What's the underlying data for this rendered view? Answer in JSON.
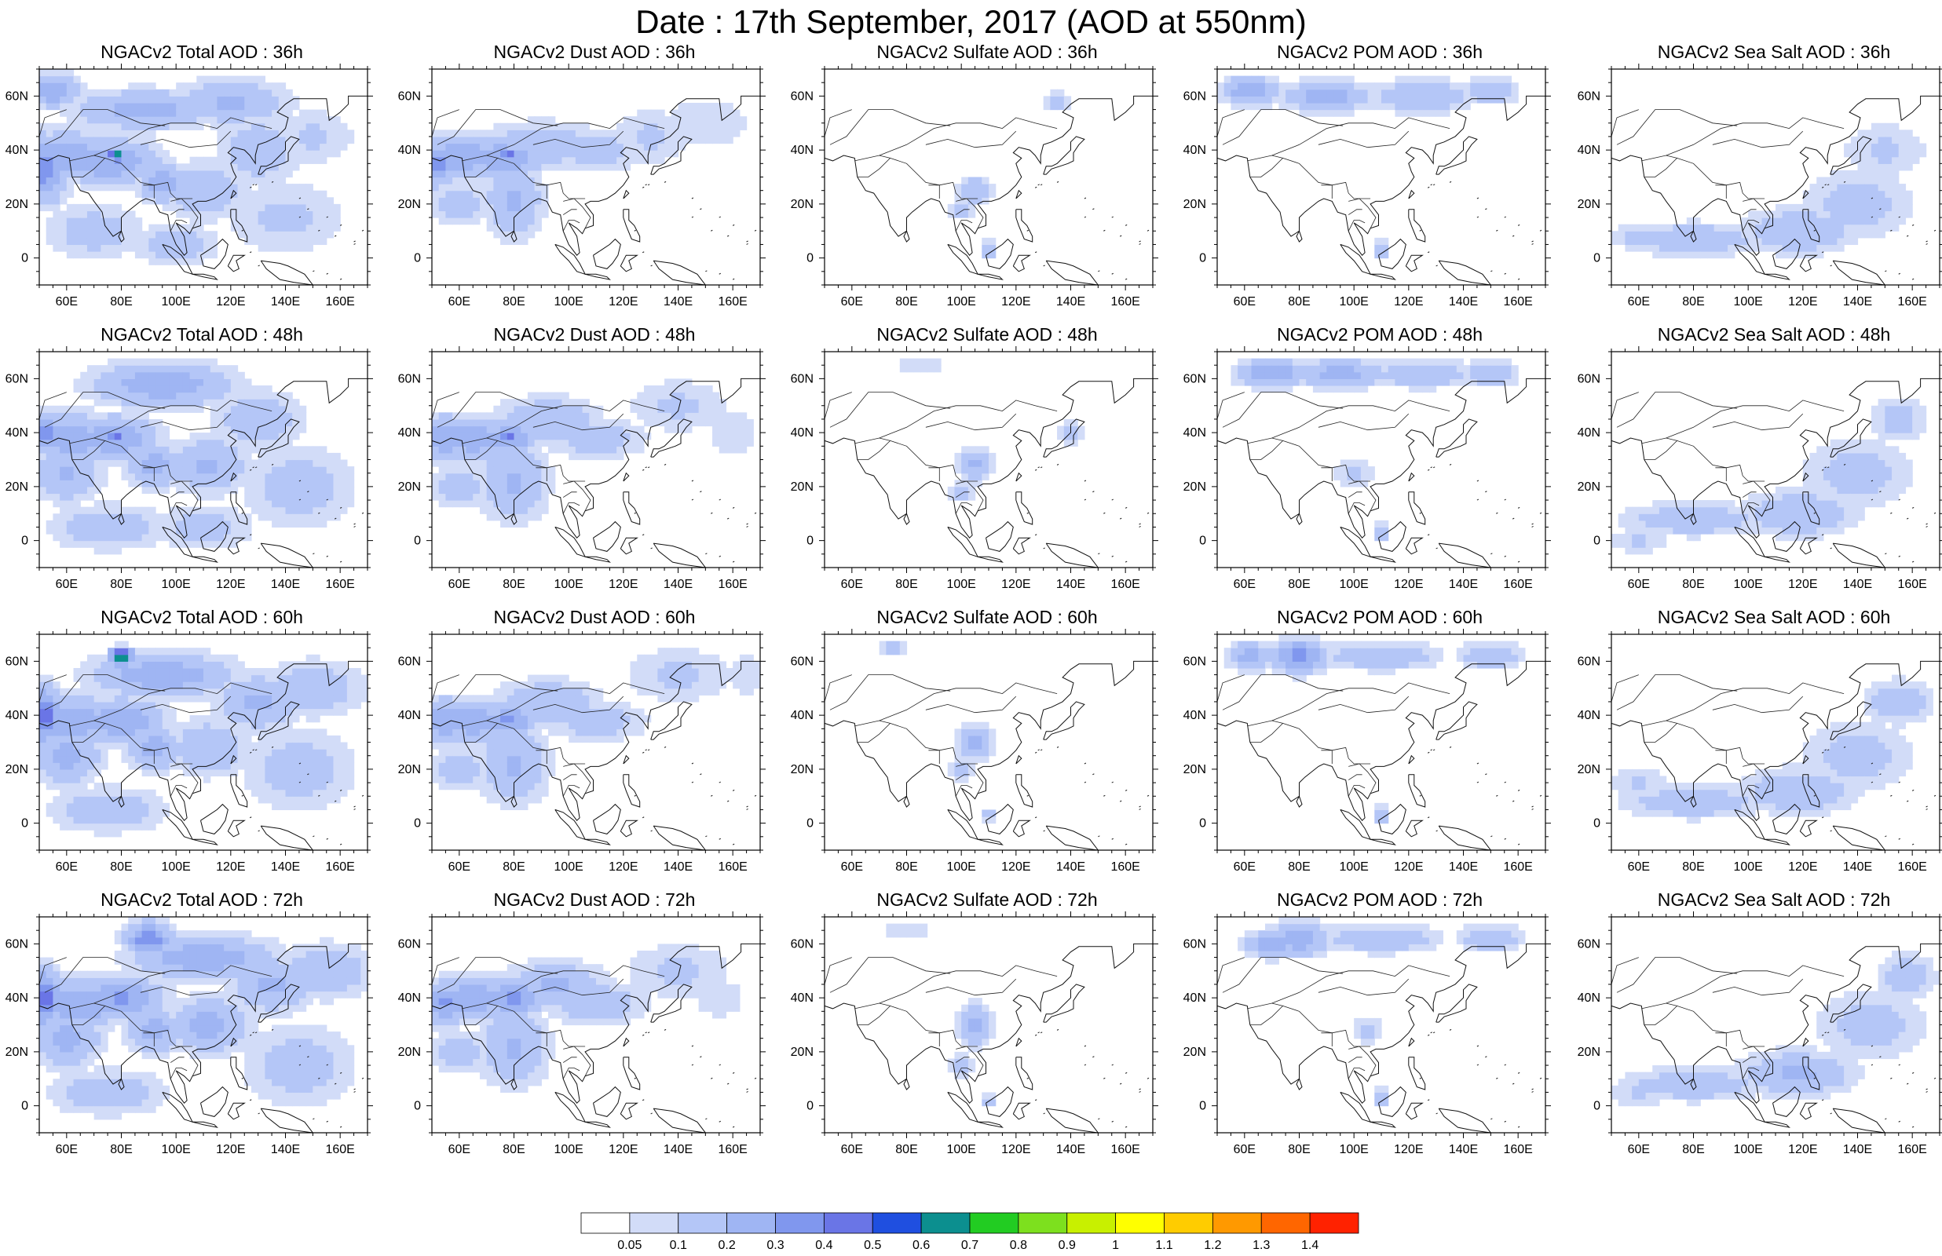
{
  "title": "Date : 17th September, 2017 (AOD at 550nm)",
  "panel_titles": [
    [
      "NGACv2 Total AOD : 36h",
      "NGACv2 Dust AOD : 36h",
      "NGACv2 Sulfate AOD : 36h",
      "NGACv2 POM AOD : 36h",
      "NGACv2 Sea Salt AOD : 36h"
    ],
    [
      "NGACv2 Total AOD : 48h",
      "NGACv2 Dust AOD : 48h",
      "NGACv2 Sulfate AOD : 48h",
      "NGACv2 POM AOD : 48h",
      "NGACv2 Sea Salt AOD : 48h"
    ],
    [
      "NGACv2 Total AOD : 60h",
      "NGACv2 Dust AOD : 60h",
      "NGACv2 Sulfate AOD : 60h",
      "NGACv2 POM AOD : 60h",
      "NGACv2 Sea Salt AOD : 60h"
    ],
    [
      "NGACv2 Total AOD : 72h",
      "NGACv2 Dust AOD : 72h",
      "NGACv2 Sulfate AOD : 72h",
      "NGACv2 POM AOD : 72h",
      "NGACv2 Sea Salt  AOD : 72h"
    ]
  ],
  "x_ticks": [
    {
      "value": 60,
      "label": "60E"
    },
    {
      "value": 80,
      "label": "80E"
    },
    {
      "value": 100,
      "label": "100E"
    },
    {
      "value": 120,
      "label": "120E"
    },
    {
      "value": 140,
      "label": "140E"
    },
    {
      "value": 160,
      "label": "160E"
    }
  ],
  "y_ticks": [
    {
      "value": 0,
      "label": "0"
    },
    {
      "value": 20,
      "label": "20N"
    },
    {
      "value": 40,
      "label": "40N"
    },
    {
      "value": 60,
      "label": "60N"
    }
  ],
  "map_extent": {
    "lon": [
      50,
      170
    ],
    "lat": [
      -10,
      70
    ]
  },
  "colorbar": {
    "labels": [
      "0.05",
      "0.1",
      "0.2",
      "0.3",
      "0.4",
      "0.5",
      "0.6",
      "0.7",
      "0.8",
      "0.9",
      "1",
      "1.1",
      "1.2",
      "1.3",
      "1.4"
    ],
    "colors": [
      "#ffffff",
      "#d2dcf8",
      "#b4c6f7",
      "#9fb5f3",
      "#8097ee",
      "#6a75e6",
      "#1f4fe0",
      "#0c8f8f",
      "#22cc22",
      "#7de01e",
      "#c8f000",
      "#ffff00",
      "#ffcc00",
      "#ff9900",
      "#ff6600",
      "#ff2200"
    ]
  },
  "panels": [
    [
      {
        "blobs": [
          [
            52,
            33,
            8,
            12,
            0.35
          ],
          [
            60,
            38,
            14,
            9,
            0.28
          ],
          [
            75,
            36,
            18,
            8,
            0.3
          ],
          [
            78,
            38,
            3,
            2,
            0.75
          ],
          [
            88,
            55,
            25,
            7,
            0.25
          ],
          [
            95,
            28,
            8,
            7,
            0.28
          ],
          [
            110,
            25,
            14,
            10,
            0.2
          ],
          [
            130,
            40,
            14,
            12,
            0.18
          ],
          [
            140,
            15,
            22,
            14,
            0.12
          ],
          [
            70,
            10,
            18,
            10,
            0.15
          ],
          [
            100,
            5,
            15,
            8,
            0.15
          ],
          [
            150,
            45,
            15,
            10,
            0.12
          ],
          [
            55,
            62,
            10,
            6,
            0.28
          ],
          [
            120,
            58,
            20,
            8,
            0.22
          ]
        ]
      },
      {
        "blobs": [
          [
            52,
            35,
            6,
            8,
            0.35
          ],
          [
            62,
            38,
            14,
            8,
            0.28
          ],
          [
            76,
            37,
            14,
            7,
            0.3
          ],
          [
            78,
            38,
            3,
            2,
            0.6
          ],
          [
            90,
            42,
            20,
            8,
            0.2
          ],
          [
            80,
            22,
            10,
            14,
            0.22
          ],
          [
            110,
            40,
            18,
            8,
            0.15
          ],
          [
            130,
            45,
            15,
            10,
            0.12
          ],
          [
            60,
            20,
            12,
            8,
            0.15
          ],
          [
            150,
            50,
            18,
            10,
            0.1
          ]
        ]
      },
      {
        "blobs": [
          [
            105,
            25,
            6,
            5,
            0.2
          ],
          [
            135,
            58,
            5,
            4,
            0.15
          ],
          [
            110,
            3,
            3,
            3,
            0.2
          ],
          [
            100,
            18,
            4,
            4,
            0.15
          ]
        ]
      },
      {
        "blobs": [
          [
            62,
            62,
            10,
            5,
            0.3
          ],
          [
            90,
            60,
            15,
            6,
            0.25
          ],
          [
            125,
            60,
            18,
            6,
            0.2
          ],
          [
            150,
            62,
            10,
            5,
            0.18
          ],
          [
            110,
            3,
            3,
            3,
            0.25
          ]
        ]
      },
      {
        "blobs": [
          [
            80,
            7,
            25,
            6,
            0.18
          ],
          [
            118,
            10,
            20,
            8,
            0.2
          ],
          [
            140,
            20,
            20,
            12,
            0.15
          ],
          [
            150,
            40,
            15,
            10,
            0.12
          ],
          [
            60,
            8,
            10,
            5,
            0.15
          ]
        ]
      }
    ],
    [
      {
        "blobs": [
          [
            52,
            40,
            6,
            7,
            0.4
          ],
          [
            62,
            38,
            14,
            9,
            0.28
          ],
          [
            78,
            38,
            15,
            8,
            0.3
          ],
          [
            78,
            38,
            3,
            2,
            0.6
          ],
          [
            95,
            58,
            25,
            8,
            0.28
          ],
          [
            60,
            25,
            12,
            10,
            0.22
          ],
          [
            92,
            28,
            10,
            8,
            0.25
          ],
          [
            112,
            28,
            14,
            10,
            0.22
          ],
          [
            130,
            45,
            15,
            10,
            0.2
          ],
          [
            145,
            20,
            20,
            15,
            0.15
          ],
          [
            75,
            5,
            20,
            8,
            0.18
          ],
          [
            110,
            5,
            18,
            8,
            0.15
          ]
        ]
      },
      {
        "blobs": [
          [
            55,
            38,
            8,
            8,
            0.3
          ],
          [
            65,
            38,
            14,
            8,
            0.28
          ],
          [
            78,
            38,
            10,
            6,
            0.32
          ],
          [
            78,
            38,
            3,
            2,
            0.5
          ],
          [
            92,
            45,
            18,
            8,
            0.2
          ],
          [
            80,
            22,
            12,
            14,
            0.22
          ],
          [
            110,
            38,
            18,
            8,
            0.15
          ],
          [
            60,
            20,
            12,
            8,
            0.15
          ],
          [
            140,
            50,
            18,
            10,
            0.12
          ],
          [
            160,
            40,
            10,
            10,
            0.1
          ]
        ]
      },
      {
        "blobs": [
          [
            105,
            28,
            6,
            6,
            0.22
          ],
          [
            100,
            18,
            4,
            4,
            0.15
          ],
          [
            85,
            65,
            8,
            3,
            0.12
          ],
          [
            140,
            40,
            5,
            5,
            0.12
          ]
        ]
      },
      {
        "blobs": [
          [
            70,
            62,
            12,
            5,
            0.3
          ],
          [
            95,
            62,
            18,
            5,
            0.25
          ],
          [
            125,
            62,
            18,
            5,
            0.2
          ],
          [
            150,
            62,
            10,
            5,
            0.18
          ],
          [
            110,
            3,
            3,
            3,
            0.25
          ],
          [
            100,
            25,
            8,
            6,
            0.12
          ]
        ]
      },
      {
        "blobs": [
          [
            80,
            8,
            25,
            6,
            0.18
          ],
          [
            118,
            10,
            20,
            8,
            0.2
          ],
          [
            140,
            25,
            20,
            12,
            0.15
          ],
          [
            155,
            45,
            10,
            8,
            0.15
          ],
          [
            60,
            0,
            10,
            5,
            0.12
          ]
        ]
      }
    ],
    [
      {
        "blobs": [
          [
            52,
            40,
            6,
            10,
            0.45
          ],
          [
            62,
            38,
            14,
            9,
            0.3
          ],
          [
            80,
            38,
            15,
            8,
            0.3
          ],
          [
            80,
            62,
            4,
            3,
            0.75
          ],
          [
            95,
            55,
            25,
            8,
            0.28
          ],
          [
            60,
            25,
            12,
            10,
            0.25
          ],
          [
            92,
            28,
            10,
            8,
            0.25
          ],
          [
            112,
            28,
            14,
            10,
            0.2
          ],
          [
            130,
            45,
            15,
            10,
            0.22
          ],
          [
            150,
            50,
            18,
            10,
            0.18
          ],
          [
            145,
            20,
            20,
            15,
            0.15
          ],
          [
            75,
            5,
            20,
            8,
            0.18
          ]
        ]
      },
      {
        "blobs": [
          [
            55,
            38,
            8,
            8,
            0.3
          ],
          [
            65,
            38,
            14,
            8,
            0.28
          ],
          [
            78,
            38,
            10,
            6,
            0.32
          ],
          [
            92,
            45,
            18,
            8,
            0.2
          ],
          [
            80,
            22,
            12,
            14,
            0.22
          ],
          [
            110,
            38,
            18,
            8,
            0.15
          ],
          [
            60,
            20,
            12,
            8,
            0.15
          ],
          [
            140,
            55,
            20,
            10,
            0.12
          ],
          [
            165,
            55,
            8,
            8,
            0.1
          ]
        ]
      },
      {
        "blobs": [
          [
            105,
            30,
            6,
            6,
            0.22
          ],
          [
            100,
            20,
            4,
            4,
            0.15
          ],
          [
            75,
            65,
            5,
            3,
            0.15
          ],
          [
            110,
            3,
            3,
            3,
            0.15
          ]
        ]
      },
      {
        "blobs": [
          [
            80,
            62,
            10,
            6,
            0.35
          ],
          [
            62,
            62,
            8,
            5,
            0.25
          ],
          [
            110,
            62,
            20,
            5,
            0.2
          ],
          [
            150,
            62,
            12,
            5,
            0.18
          ],
          [
            110,
            3,
            3,
            3,
            0.25
          ]
        ]
      },
      {
        "blobs": [
          [
            80,
            8,
            25,
            6,
            0.18
          ],
          [
            118,
            12,
            20,
            8,
            0.2
          ],
          [
            140,
            25,
            20,
            12,
            0.15
          ],
          [
            155,
            45,
            12,
            8,
            0.18
          ],
          [
            60,
            15,
            10,
            6,
            0.12
          ]
        ]
      }
    ],
    [
      {
        "blobs": [
          [
            52,
            40,
            6,
            10,
            0.45
          ],
          [
            65,
            38,
            15,
            9,
            0.3
          ],
          [
            80,
            40,
            15,
            8,
            0.32
          ],
          [
            90,
            62,
            8,
            6,
            0.4
          ],
          [
            110,
            55,
            25,
            8,
            0.28
          ],
          [
            60,
            25,
            12,
            10,
            0.25
          ],
          [
            92,
            28,
            10,
            8,
            0.25
          ],
          [
            112,
            30,
            14,
            10,
            0.25
          ],
          [
            135,
            45,
            15,
            10,
            0.22
          ],
          [
            155,
            50,
            18,
            10,
            0.18
          ],
          [
            145,
            15,
            20,
            15,
            0.15
          ],
          [
            75,
            5,
            20,
            8,
            0.18
          ]
        ]
      },
      {
        "blobs": [
          [
            55,
            38,
            8,
            8,
            0.32
          ],
          [
            65,
            40,
            14,
            8,
            0.3
          ],
          [
            80,
            40,
            10,
            6,
            0.35
          ],
          [
            95,
            45,
            18,
            8,
            0.22
          ],
          [
            80,
            22,
            12,
            14,
            0.22
          ],
          [
            110,
            38,
            18,
            8,
            0.18
          ],
          [
            60,
            20,
            12,
            8,
            0.15
          ],
          [
            140,
            50,
            20,
            10,
            0.12
          ],
          [
            155,
            40,
            10,
            8,
            0.1
          ]
        ]
      },
      {
        "blobs": [
          [
            105,
            30,
            6,
            8,
            0.22
          ],
          [
            100,
            15,
            4,
            4,
            0.15
          ],
          [
            80,
            65,
            10,
            3,
            0.12
          ],
          [
            110,
            2,
            3,
            3,
            0.15
          ]
        ]
      },
      {
        "blobs": [
          [
            80,
            62,
            10,
            6,
            0.3
          ],
          [
            70,
            60,
            10,
            5,
            0.25
          ],
          [
            110,
            62,
            20,
            5,
            0.2
          ],
          [
            150,
            62,
            12,
            5,
            0.18
          ],
          [
            110,
            3,
            3,
            3,
            0.25
          ],
          [
            105,
            28,
            6,
            5,
            0.12
          ]
        ]
      },
      {
        "blobs": [
          [
            80,
            8,
            25,
            6,
            0.18
          ],
          [
            118,
            12,
            20,
            8,
            0.22
          ],
          [
            145,
            30,
            20,
            12,
            0.15
          ],
          [
            158,
            48,
            10,
            8,
            0.18
          ],
          [
            60,
            5,
            10,
            6,
            0.12
          ]
        ]
      }
    ]
  ]
}
